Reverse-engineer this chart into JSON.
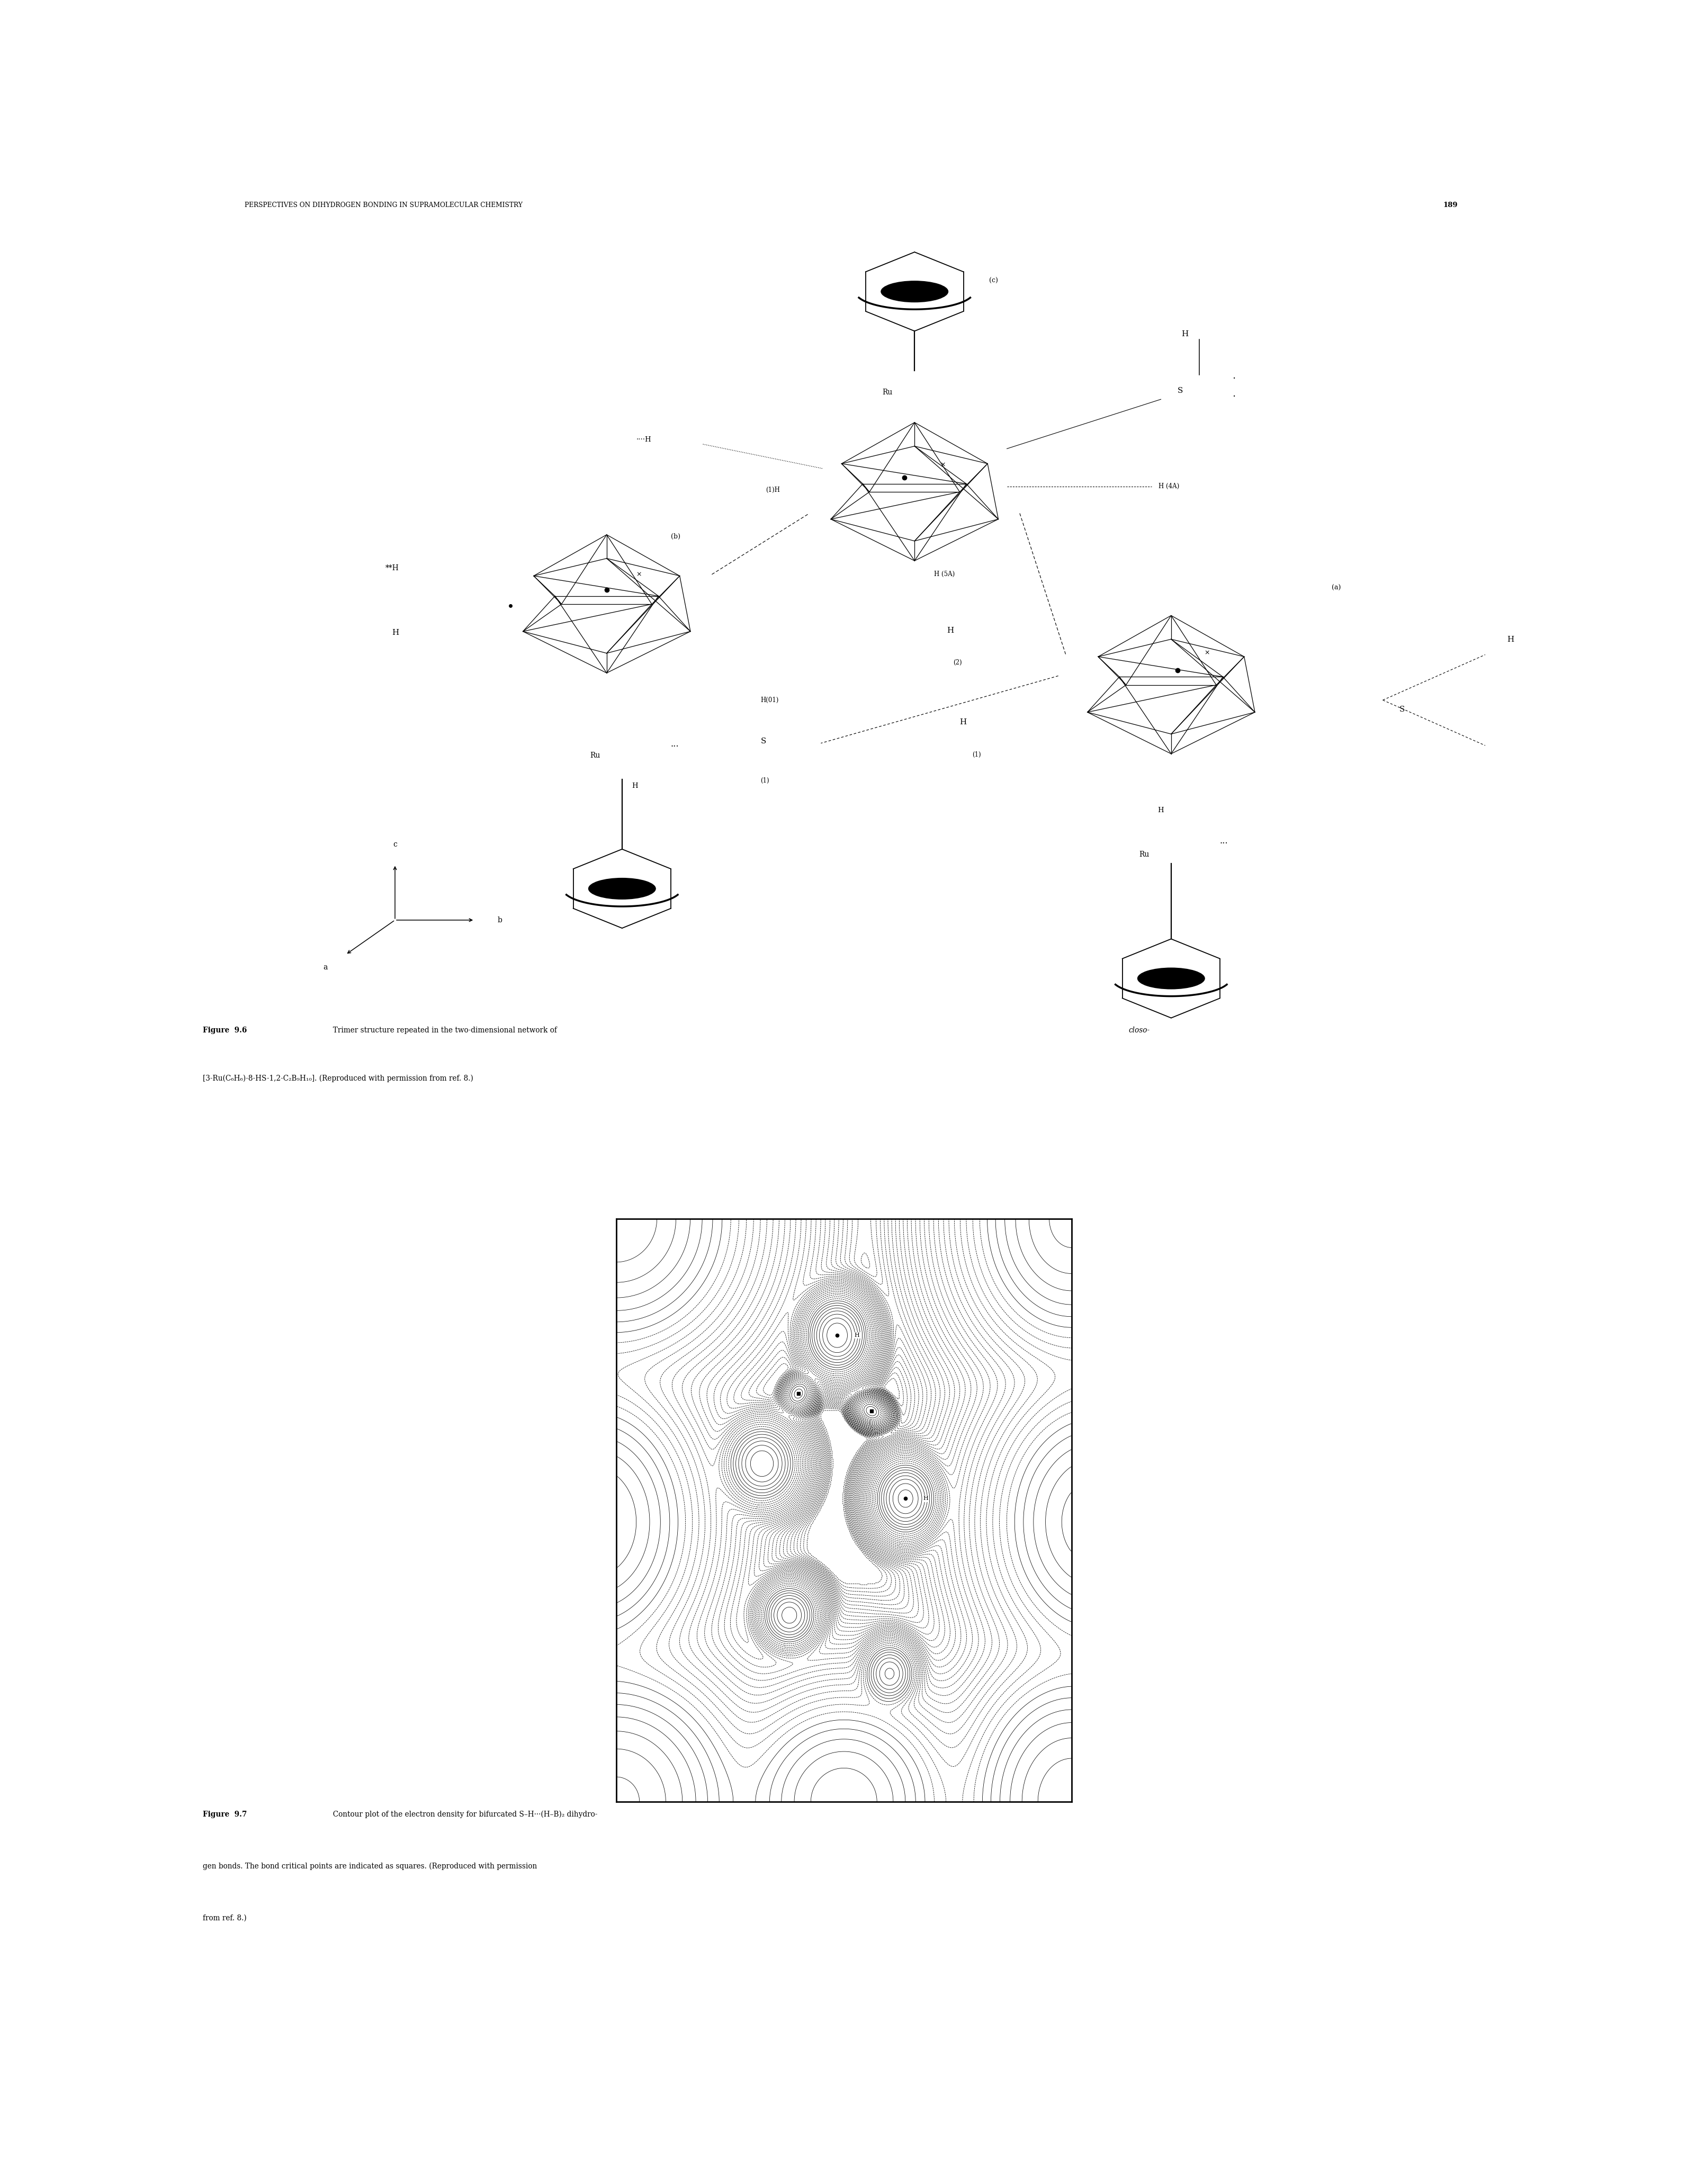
{
  "page_width": 31.88,
  "page_height": 41.25,
  "bg": "#ffffff",
  "header": "PERSPECTIVES ON DIHYDROGEN BONDING IN SUPRAMOLECULAR CHEMISTRY",
  "page_num": "189",
  "fig96_bold": "Figure  9.6",
  "fig96_normal": "  Trimer structure repeated in the two-dimensional network of ",
  "fig96_italic": "closo-",
  "fig96_line2": "[3-Ru(C₆H₆)-8-HS-1,2-C₂B₉H₁₀]. (Reproduced with permission from ref. 8.)",
  "fig97_bold": "Figure  9.7",
  "fig97_line1": "  Contour plot of the electron density for bifurcated S–H···(H–B)₂ dihydro-",
  "fig97_line2": "gen bonds. The bond critical points are indicated as squares. (Reproduced with permission",
  "fig97_line3": "from ref. 8.)"
}
